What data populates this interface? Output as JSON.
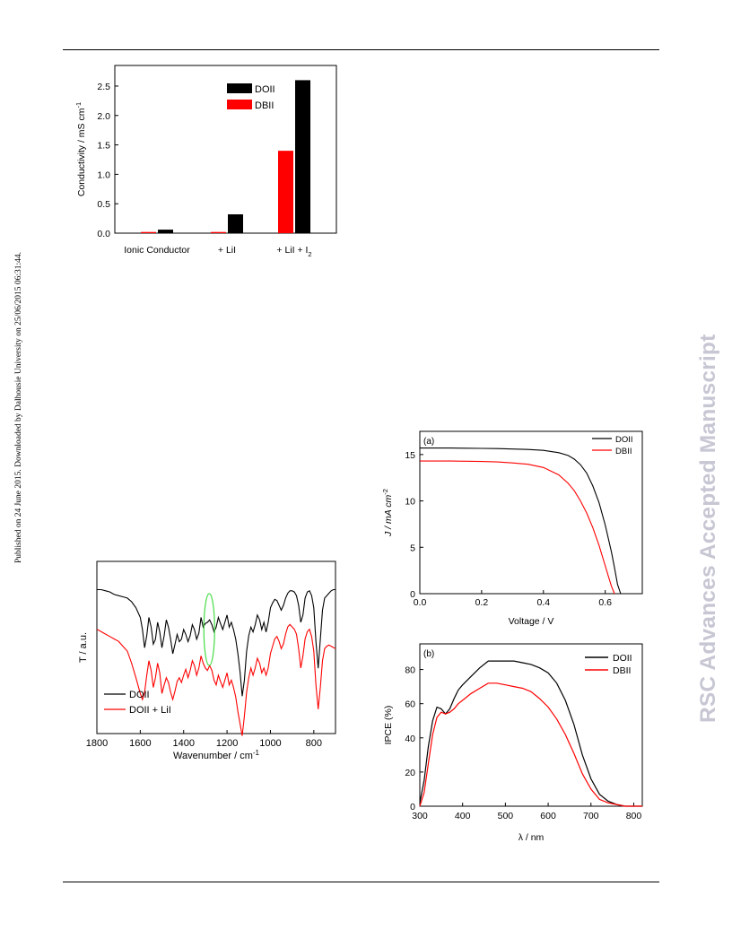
{
  "page": {
    "side_note": "Published on 24 June 2015. Downloaded by Dalhousie University on 25/06/2015 06:31:44.",
    "watermark": "RSC Advances Accepted Manuscript"
  },
  "chart_data": [
    {
      "id": "conductivity",
      "type": "bar",
      "categories": [
        "Ionic Conductor",
        "+ LiI",
        "+ LiI + I"
      ],
      "category_subscript": [
        "",
        "",
        "2"
      ],
      "series": [
        {
          "name": "DBII",
          "color": "#ff0000",
          "values": [
            0.02,
            0.02,
            1.4
          ]
        },
        {
          "name": "DOII",
          "color": "#000000",
          "values": [
            0.06,
            0.32,
            2.6
          ]
        }
      ],
      "legend_order": [
        "DOII",
        "DBII"
      ],
      "ylabel": "Conductivity / mS cm",
      "ylabel_sup": "-1",
      "ylim": [
        0,
        2.85
      ],
      "yticks": [
        0.0,
        0.5,
        1.0,
        1.5,
        2.0,
        2.5
      ],
      "ytick_labels": [
        "0.0",
        "0.5",
        "1.0",
        "1.5",
        "2.0",
        "2.5"
      ],
      "legend_position": "top-center",
      "grid": false
    },
    {
      "id": "ftir",
      "type": "line",
      "xlabel": "Wavenumber / cm",
      "xlabel_sup": "-1",
      "ylabel": "T / a.u.",
      "xlim": [
        1800,
        700
      ],
      "ylim": [
        0,
        1
      ],
      "xticks": [
        1800,
        1600,
        1400,
        1200,
        1000,
        800
      ],
      "xtick_labels": [
        "1800",
        "1600",
        "1400",
        "1200",
        "1000",
        "800"
      ],
      "annotation": "green ellipse near 1280 cm-1",
      "legend_position": "bottom-left",
      "series": [
        {
          "name": "DOII",
          "color": "#000000",
          "x": [
            1800,
            1780,
            1760,
            1740,
            1720,
            1700,
            1680,
            1660,
            1640,
            1620,
            1600,
            1590,
            1580,
            1570,
            1560,
            1550,
            1540,
            1530,
            1520,
            1510,
            1500,
            1490,
            1480,
            1470,
            1460,
            1450,
            1440,
            1430,
            1420,
            1410,
            1400,
            1390,
            1380,
            1370,
            1360,
            1350,
            1340,
            1330,
            1320,
            1310,
            1300,
            1290,
            1280,
            1270,
            1260,
            1250,
            1240,
            1230,
            1220,
            1210,
            1200,
            1190,
            1180,
            1170,
            1160,
            1150,
            1140,
            1130,
            1120,
            1110,
            1100,
            1090,
            1080,
            1070,
            1060,
            1050,
            1040,
            1030,
            1020,
            1010,
            1000,
            990,
            980,
            970,
            960,
            950,
            940,
            930,
            920,
            910,
            900,
            890,
            880,
            870,
            860,
            850,
            840,
            830,
            820,
            810,
            800,
            790,
            780,
            770,
            760,
            750,
            740,
            730,
            720,
            710,
            700
          ],
          "y": [
            0.93,
            0.93,
            0.92,
            0.91,
            0.89,
            0.88,
            0.87,
            0.86,
            0.83,
            0.78,
            0.7,
            0.6,
            0.45,
            0.55,
            0.7,
            0.62,
            0.48,
            0.52,
            0.66,
            0.58,
            0.45,
            0.55,
            0.68,
            0.62,
            0.52,
            0.4,
            0.48,
            0.56,
            0.5,
            0.52,
            0.6,
            0.56,
            0.5,
            0.55,
            0.64,
            0.6,
            0.52,
            0.57,
            0.7,
            0.62,
            0.65,
            0.66,
            0.68,
            0.64,
            0.58,
            0.62,
            0.7,
            0.65,
            0.6,
            0.66,
            0.72,
            0.62,
            0.66,
            0.6,
            0.52,
            0.4,
            0.25,
            0.05,
            0.18,
            0.42,
            0.55,
            0.62,
            0.58,
            0.64,
            0.72,
            0.68,
            0.6,
            0.66,
            0.58,
            0.66,
            0.78,
            0.82,
            0.85,
            0.84,
            0.8,
            0.76,
            0.8,
            0.86,
            0.9,
            0.92,
            0.92,
            0.91,
            0.88,
            0.8,
            0.66,
            0.72,
            0.86,
            0.91,
            0.92,
            0.88,
            0.78,
            0.5,
            0.28,
            0.52,
            0.76,
            0.86,
            0.88,
            0.9,
            0.92,
            0.93,
            0.93
          ]
        },
        {
          "name": "DOII + LiI",
          "color": "#ff0000",
          "x": [
            1800,
            1780,
            1760,
            1740,
            1720,
            1700,
            1680,
            1660,
            1640,
            1620,
            1600,
            1590,
            1580,
            1570,
            1560,
            1550,
            1540,
            1530,
            1520,
            1510,
            1500,
            1490,
            1480,
            1470,
            1460,
            1450,
            1440,
            1430,
            1420,
            1410,
            1400,
            1390,
            1380,
            1370,
            1360,
            1350,
            1340,
            1330,
            1320,
            1310,
            1300,
            1290,
            1280,
            1270,
            1260,
            1250,
            1240,
            1230,
            1220,
            1210,
            1200,
            1190,
            1180,
            1170,
            1160,
            1150,
            1140,
            1130,
            1120,
            1110,
            1100,
            1090,
            1080,
            1070,
            1060,
            1050,
            1040,
            1030,
            1020,
            1010,
            1000,
            990,
            980,
            970,
            960,
            950,
            940,
            930,
            920,
            910,
            900,
            890,
            880,
            870,
            860,
            850,
            840,
            830,
            820,
            810,
            800,
            790,
            780,
            770,
            760,
            750,
            740,
            730,
            720,
            710,
            700
          ],
          "y": [
            0.78,
            0.76,
            0.74,
            0.72,
            0.7,
            0.68,
            0.64,
            0.6,
            0.5,
            0.38,
            0.25,
            0.2,
            0.26,
            0.4,
            0.52,
            0.44,
            0.3,
            0.38,
            0.5,
            0.42,
            0.25,
            0.32,
            0.38,
            0.34,
            0.26,
            0.2,
            0.27,
            0.35,
            0.38,
            0.34,
            0.4,
            0.45,
            0.38,
            0.44,
            0.52,
            0.48,
            0.4,
            0.46,
            0.56,
            0.5,
            0.46,
            0.44,
            0.48,
            0.44,
            0.36,
            0.32,
            0.4,
            0.35,
            0.3,
            0.36,
            0.42,
            0.32,
            0.36,
            0.3,
            0.22,
            0.1,
            0.0,
            -0.1,
            0.06,
            0.26,
            0.38,
            0.46,
            0.4,
            0.46,
            0.54,
            0.5,
            0.42,
            0.46,
            0.4,
            0.46,
            0.58,
            0.64,
            0.7,
            0.72,
            0.68,
            0.62,
            0.66,
            0.74,
            0.8,
            0.82,
            0.8,
            0.78,
            0.74,
            0.62,
            0.46,
            0.56,
            0.7,
            0.76,
            0.78,
            0.72,
            0.6,
            0.32,
            0.12,
            0.3,
            0.52,
            0.62,
            0.64,
            0.65,
            0.64,
            0.63,
            0.62
          ]
        }
      ],
      "grid": false
    },
    {
      "id": "jv",
      "type": "line",
      "panel_label": "(a)",
      "xlabel": "Voltage / V",
      "ylabel": "J / mA cm",
      "ylabel_sup": "-2",
      "xlim": [
        0.0,
        0.72
      ],
      "ylim": [
        0,
        17.5
      ],
      "xticks": [
        0.0,
        0.2,
        0.4,
        0.6
      ],
      "xtick_labels": [
        "0.0",
        "0.2",
        "0.4",
        "0.6"
      ],
      "yticks": [
        0,
        5,
        10,
        15
      ],
      "ytick_labels": [
        "0",
        "5",
        "10",
        "15"
      ],
      "legend_position": "top-right",
      "series": [
        {
          "name": "DOII",
          "color": "#000000",
          "x": [
            0.0,
            0.05,
            0.1,
            0.15,
            0.2,
            0.25,
            0.3,
            0.35,
            0.4,
            0.45,
            0.48,
            0.5,
            0.52,
            0.54,
            0.56,
            0.58,
            0.6,
            0.62,
            0.63,
            0.64,
            0.65
          ],
          "y": [
            15.7,
            15.7,
            15.7,
            15.68,
            15.66,
            15.64,
            15.6,
            15.55,
            15.45,
            15.2,
            14.9,
            14.5,
            13.9,
            13.0,
            11.6,
            9.8,
            7.4,
            4.5,
            2.8,
            1.0,
            0
          ]
        },
        {
          "name": "DBII",
          "color": "#ff0000",
          "x": [
            0.0,
            0.05,
            0.1,
            0.15,
            0.2,
            0.25,
            0.3,
            0.35,
            0.4,
            0.45,
            0.48,
            0.5,
            0.52,
            0.54,
            0.56,
            0.58,
            0.6,
            0.61,
            0.62,
            0.63
          ],
          "y": [
            14.3,
            14.3,
            14.3,
            14.28,
            14.25,
            14.2,
            14.1,
            13.95,
            13.6,
            12.8,
            11.9,
            11.1,
            10.0,
            8.7,
            7.1,
            5.2,
            3.0,
            1.9,
            0.8,
            0
          ]
        }
      ],
      "grid": false
    },
    {
      "id": "ipce",
      "type": "line",
      "panel_label": "(b)",
      "xlabel": "λ / nm",
      "ylabel": "IPCE (%)",
      "xlim": [
        300,
        820
      ],
      "ylim": [
        0,
        95
      ],
      "xticks": [
        300,
        400,
        500,
        600,
        700,
        800
      ],
      "xtick_labels": [
        "300",
        "400",
        "500",
        "600",
        "700",
        "800"
      ],
      "yticks": [
        0,
        20,
        40,
        60,
        80
      ],
      "ytick_labels": [
        "0",
        "20",
        "40",
        "60",
        "80"
      ],
      "legend_position": "top-right",
      "series": [
        {
          "name": "DOII",
          "color": "#000000",
          "x": [
            300,
            310,
            320,
            330,
            340,
            350,
            360,
            370,
            380,
            390,
            400,
            420,
            440,
            460,
            480,
            500,
            520,
            540,
            560,
            580,
            600,
            620,
            640,
            660,
            680,
            700,
            720,
            740,
            760,
            780,
            800,
            820
          ],
          "y": [
            2,
            15,
            35,
            50,
            58,
            57,
            54,
            57,
            63,
            68,
            71,
            76,
            81,
            85,
            85,
            85,
            85,
            84,
            83,
            81,
            78,
            72,
            62,
            48,
            30,
            16,
            7,
            3,
            1,
            0,
            0,
            0
          ]
        },
        {
          "name": "DBII",
          "color": "#ff0000",
          "x": [
            300,
            310,
            320,
            330,
            340,
            350,
            360,
            370,
            380,
            390,
            400,
            420,
            440,
            460,
            480,
            500,
            520,
            540,
            560,
            580,
            600,
            620,
            640,
            660,
            680,
            700,
            720,
            740,
            760,
            780,
            800,
            820
          ],
          "y": [
            0,
            8,
            25,
            42,
            52,
            55,
            54,
            55,
            57,
            60,
            62,
            66,
            69,
            72,
            72,
            71,
            70,
            69,
            67,
            63,
            58,
            51,
            42,
            31,
            19,
            10,
            4,
            2,
            1,
            0,
            0,
            0
          ]
        }
      ],
      "grid": false
    }
  ]
}
